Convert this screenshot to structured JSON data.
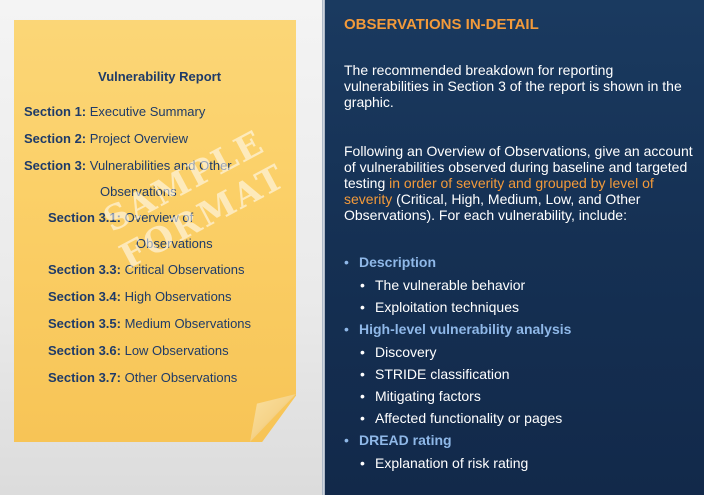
{
  "note": {
    "title": "Vulnerability Report",
    "watermark_line1": "SAMPLE",
    "watermark_line2": "FORMAT",
    "toc": [
      {
        "num": "Section 1:",
        "text": "Executive Summary"
      },
      {
        "num": "Section 2:",
        "text": "Project Overview"
      },
      {
        "num": "Section 3:",
        "text": "Vulnerabilities and Other"
      },
      {
        "num": "",
        "text": "Observations"
      },
      {
        "num": "Section 3.1:",
        "text": "Overview of"
      },
      {
        "num": "",
        "text": "Observations"
      },
      {
        "num": "Section 3.3:",
        "text": "Critical Observations"
      },
      {
        "num": "Section 3.4:",
        "text": "High Observations"
      },
      {
        "num": "Section 3.5:",
        "text": "Medium Observations"
      },
      {
        "num": "Section 3.6:",
        "text": "Low Observations"
      },
      {
        "num": "Section 3.7:",
        "text": "Other Observations"
      }
    ]
  },
  "content": {
    "heading": "OBSERVATIONS IN-DETAIL",
    "para1": "The recommended breakdown for  reporting vulnerabilities in Section 3 of the report is shown in the graphic.",
    "para2_start": "Following an Overview of Observations, give an account of vulnerabilities observed during baseline and targeted testing ",
    "para2_highlight": "in order of severity and grouped by level of severity",
    "para2_end": " (Critical, High, Medium, Low, and Other Observations). For each vulnerability, include:",
    "list": [
      {
        "level": 1,
        "text": "Description"
      },
      {
        "level": 2,
        "text": "The vulnerable behavior"
      },
      {
        "level": 2,
        "text": "Exploitation techniques"
      },
      {
        "level": 1,
        "text": "High-level vulnerability analysis"
      },
      {
        "level": 2,
        "text": "Discovery"
      },
      {
        "level": 2,
        "text": "STRIDE classification"
      },
      {
        "level": 2,
        "text": "Mitigating factors"
      },
      {
        "level": 2,
        "text": "Affected functionality or pages"
      },
      {
        "level": 1,
        "text": "DREAD rating"
      },
      {
        "level": 2,
        "text": "Explanation of risk rating"
      }
    ]
  },
  "colors": {
    "accent": "#f39a3a",
    "list_heading": "#8fb8e8",
    "background": "#16304f",
    "note": "#fbd068"
  }
}
